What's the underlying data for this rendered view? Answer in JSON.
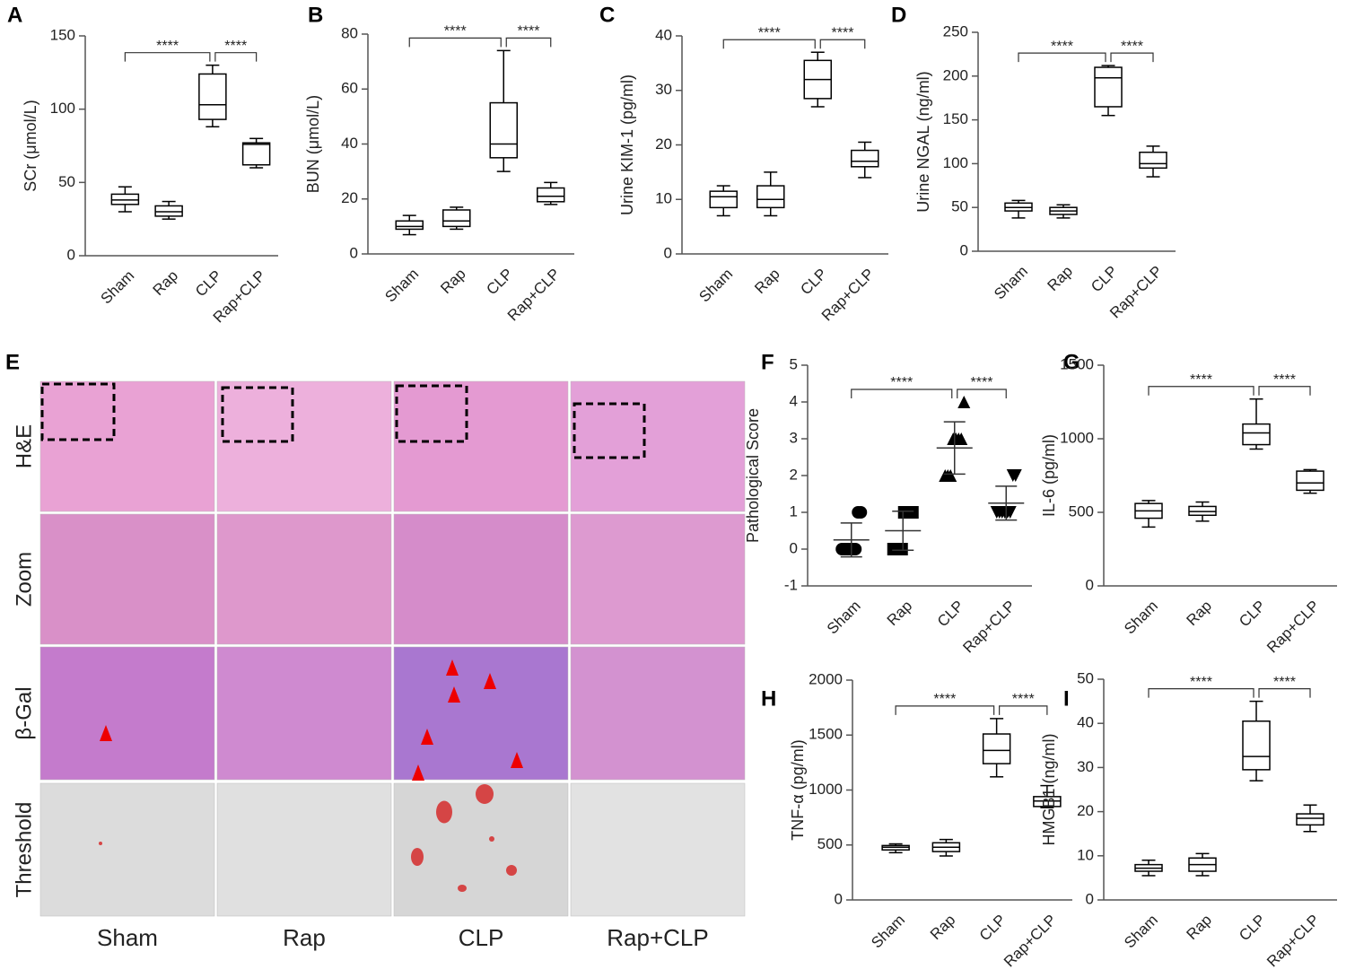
{
  "chart_data": [
    {
      "panel": "A",
      "type": "box",
      "y_label": "SCr (μmol/L)",
      "categories": [
        "Sham",
        "Rap",
        "CLP",
        "Rap+CLP"
      ],
      "boxes": [
        {
          "min": 30,
          "q1": 35,
          "median": 38,
          "q3": 42,
          "max": 47
        },
        {
          "min": 25,
          "q1": 27,
          "median": 30,
          "q3": 34,
          "max": 37
        },
        {
          "min": 88,
          "q1": 93,
          "median": 103,
          "q3": 124,
          "max": 130
        },
        {
          "min": 60,
          "q1": 62,
          "median": 76,
          "q3": 77,
          "max": 80
        }
      ],
      "ylim": [
        0,
        150
      ],
      "yticks": [
        0,
        50,
        100,
        150
      ],
      "annotations": [
        "****",
        "****"
      ],
      "color": "#000000"
    },
    {
      "panel": "B",
      "type": "box",
      "y_label": "BUN (μmol/L)",
      "categories": [
        "Sham",
        "Rap",
        "CLP",
        "Rap+CLP"
      ],
      "boxes": [
        {
          "min": 7,
          "q1": 9,
          "median": 10,
          "q3": 12,
          "max": 14
        },
        {
          "min": 9,
          "q1": 10,
          "median": 12,
          "q3": 16,
          "max": 17
        },
        {
          "min": 30,
          "q1": 35,
          "median": 40,
          "q3": 55,
          "max": 74
        },
        {
          "min": 18,
          "q1": 19,
          "median": 21,
          "q3": 24,
          "max": 26
        }
      ],
      "ylim": [
        0,
        80
      ],
      "yticks": [
        0,
        20,
        40,
        60,
        80
      ],
      "annotations": [
        "****",
        "****"
      ],
      "color": "#000000"
    },
    {
      "panel": "C",
      "type": "box",
      "y_label": "Urine KIM-1 (pg/ml)",
      "categories": [
        "Sham",
        "Rap",
        "CLP",
        "Rap+CLP"
      ],
      "boxes": [
        {
          "min": 7,
          "q1": 8.5,
          "median": 10.5,
          "q3": 11.5,
          "max": 12.5
        },
        {
          "min": 7,
          "q1": 8.5,
          "median": 10,
          "q3": 12.5,
          "max": 15
        },
        {
          "min": 27,
          "q1": 28.5,
          "median": 32,
          "q3": 35.5,
          "max": 37
        },
        {
          "min": 14,
          "q1": 16,
          "median": 17,
          "q3": 19,
          "max": 20.5
        }
      ],
      "ylim": [
        0,
        40
      ],
      "yticks": [
        0,
        10,
        20,
        30,
        40
      ],
      "annotations": [
        "****",
        "****"
      ],
      "color": "#000000"
    },
    {
      "panel": "D",
      "type": "box",
      "y_label": "Urine NGAL (ng/ml)",
      "categories": [
        "Sham",
        "Rap",
        "CLP",
        "Rap+CLP"
      ],
      "boxes": [
        {
          "min": 38,
          "q1": 46,
          "median": 50,
          "q3": 55,
          "max": 58
        },
        {
          "min": 38,
          "q1": 42,
          "median": 46,
          "q3": 50,
          "max": 53
        },
        {
          "min": 155,
          "q1": 165,
          "median": 198,
          "q3": 210,
          "max": 212
        },
        {
          "min": 85,
          "q1": 95,
          "median": 100,
          "q3": 113,
          "max": 120
        }
      ],
      "ylim": [
        0,
        250
      ],
      "yticks": [
        0,
        50,
        100,
        150,
        200,
        250
      ],
      "annotations": [
        "****",
        "****"
      ],
      "color": "#000000"
    },
    {
      "panel": "F",
      "type": "dot",
      "y_label": "Pathological Score",
      "categories": [
        "Sham",
        "Rap",
        "CLP",
        "Rap+CLP"
      ],
      "points": [
        [
          0,
          0,
          0,
          0,
          0,
          0,
          1,
          1
        ],
        [
          0,
          0,
          0,
          0,
          1,
          1,
          1,
          1
        ],
        [
          2,
          2,
          2,
          3,
          3,
          3,
          3,
          4
        ],
        [
          1,
          1,
          1,
          1,
          1,
          1,
          2,
          2
        ]
      ],
      "mean": [
        0.25,
        0.5,
        2.75,
        1.25
      ],
      "sd": [
        0.46,
        0.53,
        0.71,
        0.46
      ],
      "markers": [
        "circle",
        "square",
        "triangle",
        "triangle-down"
      ],
      "ylim": [
        -1,
        5
      ],
      "yticks": [
        -1,
        0,
        1,
        2,
        3,
        4,
        5
      ],
      "annotations": [
        "****",
        "****"
      ],
      "color": "#000000"
    },
    {
      "panel": "G",
      "type": "box",
      "y_label": "IL-6 (pg/ml)",
      "categories": [
        "Sham",
        "Rap",
        "CLP",
        "Rap+CLP"
      ],
      "boxes": [
        {
          "min": 400,
          "q1": 460,
          "median": 510,
          "q3": 560,
          "max": 580
        },
        {
          "min": 440,
          "q1": 480,
          "median": 505,
          "q3": 540,
          "max": 570
        },
        {
          "min": 930,
          "q1": 960,
          "median": 1040,
          "q3": 1100,
          "max": 1270
        },
        {
          "min": 630,
          "q1": 650,
          "median": 700,
          "q3": 780,
          "max": 790
        }
      ],
      "ylim": [
        0,
        1500
      ],
      "yticks": [
        0,
        500,
        1000,
        1500
      ],
      "annotations": [
        "****",
        "****"
      ],
      "color": "#000000"
    },
    {
      "panel": "H",
      "type": "box",
      "y_label": "TNF-α (pg/ml)",
      "categories": [
        "Sham",
        "Rap",
        "CLP",
        "Rap+CLP"
      ],
      "boxes": [
        {
          "min": 430,
          "q1": 455,
          "median": 480,
          "q3": 495,
          "max": 510
        },
        {
          "min": 400,
          "q1": 440,
          "median": 480,
          "q3": 520,
          "max": 550
        },
        {
          "min": 1120,
          "q1": 1240,
          "median": 1360,
          "q3": 1510,
          "max": 1650
        },
        {
          "min": 840,
          "q1": 850,
          "median": 900,
          "q3": 940,
          "max": 1040
        }
      ],
      "ylim": [
        0,
        2000
      ],
      "yticks": [
        0,
        500,
        1000,
        1500,
        2000
      ],
      "annotations": [
        "****",
        "****"
      ],
      "color": "#000000"
    },
    {
      "panel": "I",
      "type": "box",
      "y_label": "HMGB1 (ng/ml)",
      "categories": [
        "Sham",
        "Rap",
        "CLP",
        "Rap+CLP"
      ],
      "boxes": [
        {
          "min": 5.5,
          "q1": 6.5,
          "median": 7.2,
          "q3": 8,
          "max": 9
        },
        {
          "min": 5.5,
          "q1": 6.5,
          "median": 8,
          "q3": 9.5,
          "max": 10.5
        },
        {
          "min": 27,
          "q1": 29.5,
          "median": 32.5,
          "q3": 40.5,
          "max": 45
        },
        {
          "min": 15.5,
          "q1": 17,
          "median": 18.5,
          "q3": 19.5,
          "max": 21.5
        }
      ],
      "ylim": [
        0,
        50
      ],
      "yticks": [
        0,
        10,
        20,
        30,
        40,
        50
      ],
      "annotations": [
        "****",
        "****"
      ],
      "color": "#000000"
    }
  ],
  "image_panel": {
    "panel": "E",
    "rows": [
      "H&E",
      "Zoom",
      "β-Gal",
      "Threshold"
    ],
    "columns": [
      "Sham",
      "Rap",
      "CLP",
      "Rap+CLP"
    ]
  }
}
